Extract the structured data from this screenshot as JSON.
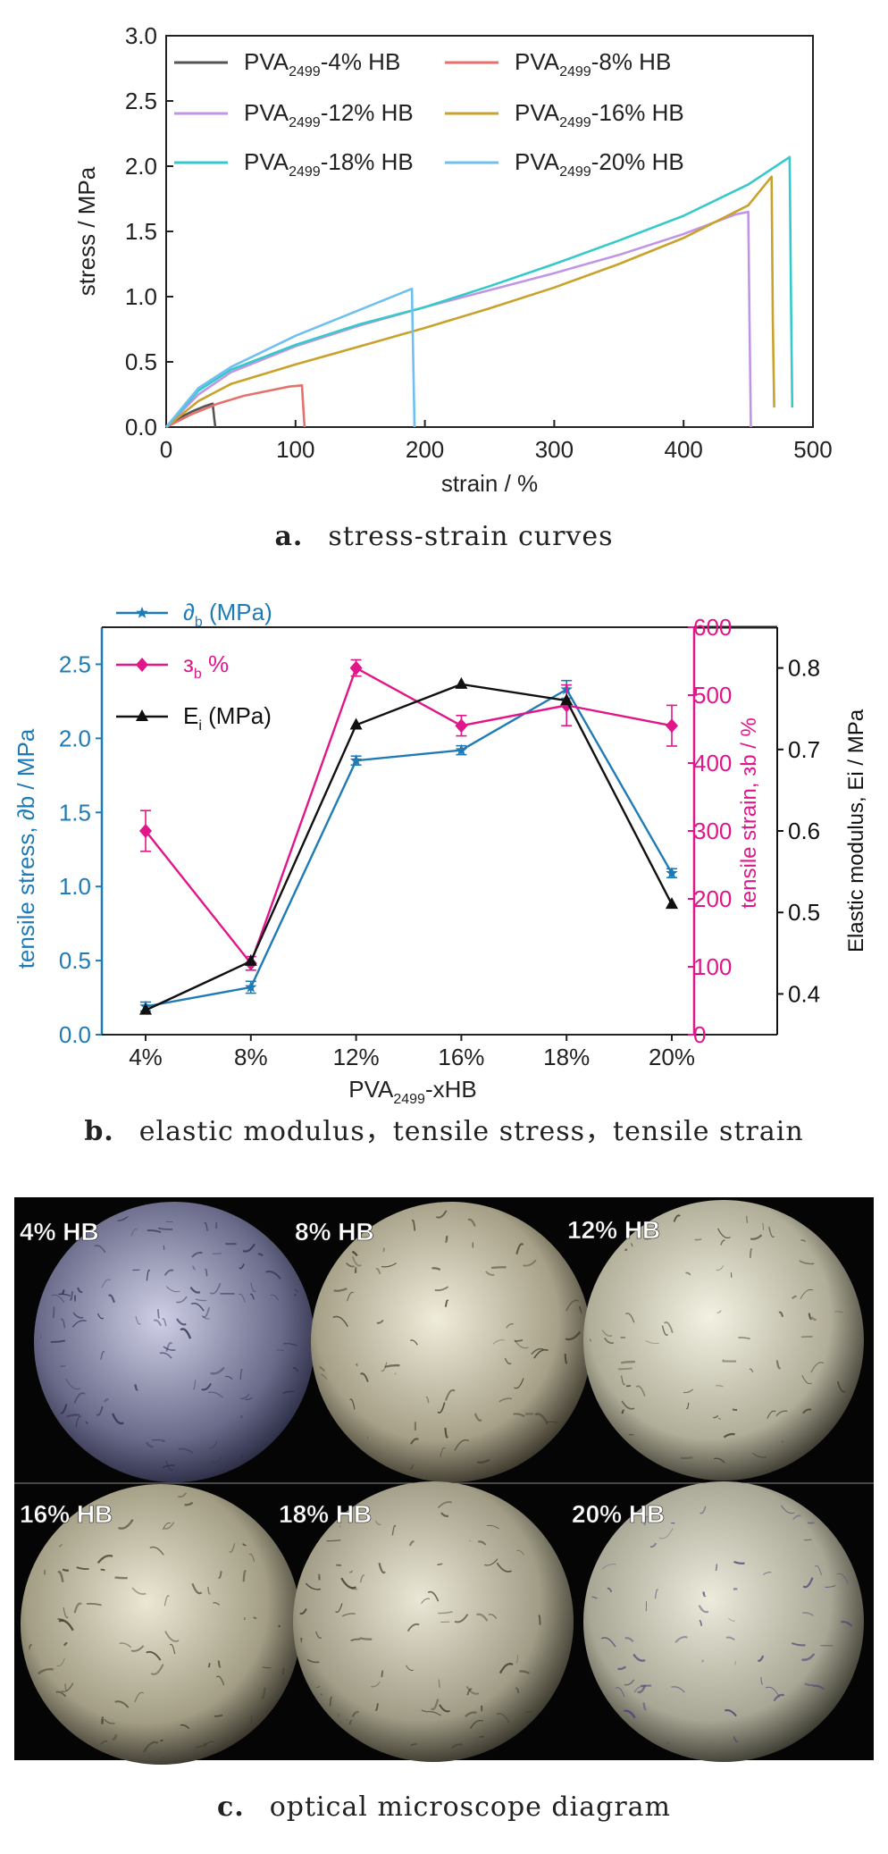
{
  "figure_a": {
    "caption_letter": "a.",
    "caption_text": "stress-strain curves"
  },
  "figure_b": {
    "caption_letter": "b.",
    "caption_text": "elastic modulus，tensile stress，tensile strain",
    "xlabel_main": "PVA",
    "xlabel_sub": "2499",
    "xlabel_tail": "-xHB",
    "ylabel_left": "tensile stress, ∂b / MPa",
    "ylabel_right_inner": "tensile strain, зb / %",
    "ylabel_right_outer": "Elastic modulus, Ei / MPa"
  },
  "figure_c": {
    "caption_letter": "c.",
    "caption_text": "optical microscope diagram",
    "panels": [
      "4% HB",
      "8% HB",
      "12% HB",
      "16% HB",
      "18% HB",
      "20% HB"
    ]
  },
  "colors": {
    "c4": "#555555",
    "c8": "#e8706c",
    "c12": "#c195e6",
    "c16": "#c9a22c",
    "c18": "#35c9c9",
    "c20": "#6fc0f0",
    "tensile_stress": "#1f7bb5",
    "tensile_strain": "#e0168a",
    "modulus": "#111111",
    "axis_left": "#1f7bb5",
    "axis_right_inner": "#e0168a",
    "axis_right_outer": "#111111"
  },
  "chart_data": [
    {
      "type": "line",
      "xlabel": "strain / %",
      "ylabel": "stress / MPa",
      "xlim": [
        0,
        500
      ],
      "ylim": [
        0,
        3.0
      ],
      "xticks": [
        0,
        100,
        200,
        300,
        400,
        500
      ],
      "yticks": [
        0.0,
        0.5,
        1.0,
        1.5,
        2.0,
        2.5,
        3.0
      ],
      "xtick_labels": [
        "0",
        "100",
        "200",
        "300",
        "400",
        "500"
      ],
      "ytick_labels": [
        "0.0",
        "0.5",
        "1.0",
        "1.5",
        "2.0",
        "2.5",
        "3.0"
      ],
      "legend_position": "top",
      "series": [
        {
          "name": "PVA2499-4% HB",
          "legend_main": "PVA",
          "legend_sub": "2499",
          "legend_tail": "-4% HB",
          "color_key": "c4",
          "x": [
            0,
            10,
            20,
            30,
            36,
            37,
            38
          ],
          "y": [
            0,
            0.07,
            0.12,
            0.16,
            0.18,
            0.08,
            0
          ]
        },
        {
          "name": "PVA2499-8% HB",
          "legend_main": "PVA",
          "legend_sub": "2499",
          "legend_tail": "-8% HB",
          "color_key": "c8",
          "x": [
            0,
            20,
            40,
            60,
            80,
            95,
            105,
            106,
            107
          ],
          "y": [
            0,
            0.1,
            0.18,
            0.24,
            0.28,
            0.31,
            0.32,
            0.15,
            0
          ]
        },
        {
          "name": "PVA2499-12% HB",
          "legend_main": "PVA",
          "legend_sub": "2499",
          "legend_tail": "-12% HB",
          "color_key": "c12",
          "x": [
            0,
            25,
            50,
            100,
            150,
            200,
            250,
            300,
            350,
            400,
            440,
            450,
            451,
            452
          ],
          "y": [
            0,
            0.25,
            0.42,
            0.62,
            0.78,
            0.92,
            1.05,
            1.18,
            1.32,
            1.48,
            1.63,
            1.65,
            0.8,
            0
          ]
        },
        {
          "name": "PVA2499-16% HB",
          "legend_main": "PVA",
          "legend_sub": "2499",
          "legend_tail": "-16% HB",
          "color_key": "c16",
          "x": [
            0,
            25,
            50,
            100,
            150,
            200,
            250,
            300,
            350,
            400,
            450,
            468,
            469,
            470
          ],
          "y": [
            0,
            0.2,
            0.33,
            0.48,
            0.62,
            0.76,
            0.91,
            1.07,
            1.25,
            1.45,
            1.7,
            1.92,
            0.8,
            0.15
          ]
        },
        {
          "name": "PVA2499-18% HB",
          "legend_main": "PVA",
          "legend_sub": "2499",
          "legend_tail": "-18% HB",
          "color_key": "c18",
          "x": [
            0,
            25,
            50,
            100,
            150,
            200,
            250,
            300,
            350,
            400,
            450,
            482,
            483,
            484
          ],
          "y": [
            0,
            0.28,
            0.44,
            0.63,
            0.79,
            0.92,
            1.08,
            1.25,
            1.43,
            1.62,
            1.86,
            2.07,
            1.0,
            0.15
          ]
        },
        {
          "name": "PVA2499-20% HB",
          "legend_main": "PVA",
          "legend_sub": "2499",
          "legend_tail": "-20% HB",
          "color_key": "c20",
          "x": [
            0,
            25,
            50,
            100,
            150,
            190,
            191,
            192
          ],
          "y": [
            0,
            0.3,
            0.46,
            0.7,
            0.9,
            1.06,
            0.5,
            0
          ]
        }
      ]
    },
    {
      "type": "line",
      "categories": [
        "4%",
        "8%",
        "12%",
        "16%",
        "18%",
        "20%"
      ],
      "ylim_left": [
        0,
        2.75
      ],
      "yticks_left": [
        0.0,
        0.5,
        1.0,
        1.5,
        2.0,
        2.5
      ],
      "ytick_labels_left": [
        "0.0",
        "0.5",
        "1.0",
        "1.5",
        "2.0",
        "2.5"
      ],
      "ylim_right_inner": [
        0,
        600
      ],
      "yticks_right_inner": [
        0,
        100,
        200,
        300,
        400,
        500,
        600
      ],
      "ytick_labels_right_inner": [
        "0",
        "100",
        "200",
        "300",
        "400",
        "500",
        "600"
      ],
      "ylim_right_outer": [
        0.35,
        0.85
      ],
      "yticks_right_outer": [
        0.4,
        0.5,
        0.6,
        0.7,
        0.8
      ],
      "ytick_labels_right_outer": [
        "0.4",
        "0.5",
        "0.6",
        "0.7",
        "0.8"
      ],
      "legend_position": "top-left",
      "series": [
        {
          "name": "∂b (MPa)",
          "legend_main": "∂",
          "legend_sub": "b",
          "legend_tail": " (MPa)",
          "color_key": "tensile_stress",
          "axis": "left",
          "marker": "star",
          "values": [
            0.19,
            0.32,
            1.85,
            1.92,
            2.33,
            1.09
          ],
          "errors": [
            0.03,
            0.04,
            0.03,
            0.03,
            0.06,
            0.03
          ]
        },
        {
          "name": "зb %",
          "legend_main": "з",
          "legend_sub": "b",
          "legend_tail": " %",
          "color_key": "tensile_strain",
          "axis": "right_inner",
          "marker": "diamond",
          "values": [
            300,
            105,
            540,
            455,
            485,
            455
          ],
          "errors": [
            30,
            10,
            12,
            15,
            30,
            30
          ]
        },
        {
          "name": "Ei (MPa)",
          "legend_main": "E",
          "legend_sub": "i",
          "legend_tail": " (MPa)",
          "color_key": "modulus",
          "axis": "right_outer",
          "marker": "triangle",
          "values": [
            0.38,
            0.44,
            0.73,
            0.78,
            0.76,
            0.51
          ],
          "errors": [
            0,
            0,
            0,
            0,
            0,
            0
          ]
        }
      ]
    }
  ]
}
